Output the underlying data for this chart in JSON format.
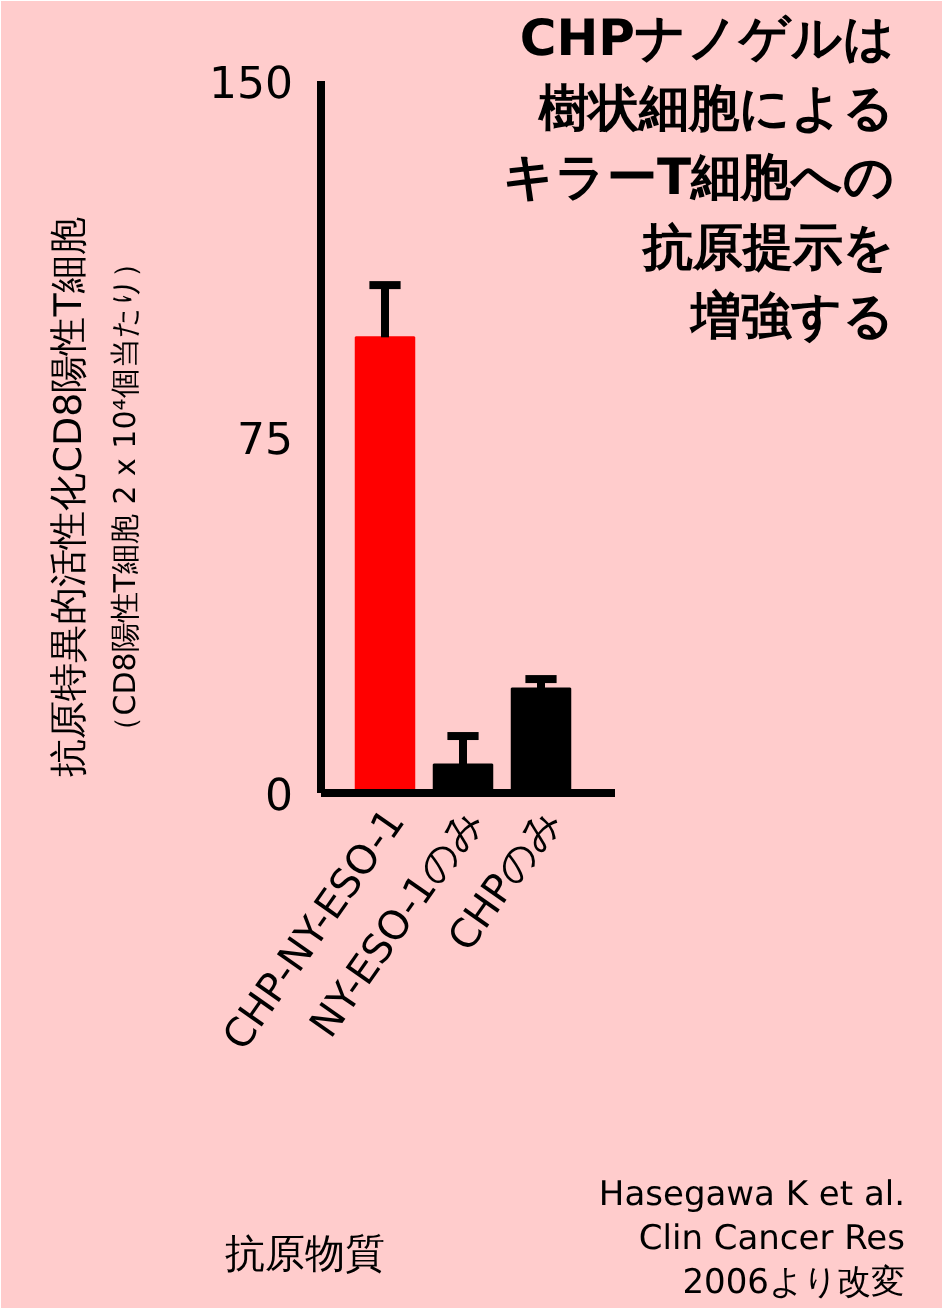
{
  "chart_data": {
    "type": "bar",
    "title": "CHPナノゲルは樹状細胞によるキラーT細胞への抗原提示を増強する",
    "xlabel": "抗原物質",
    "ylabel": "抗原特異的活性化CD8陽性T細胞",
    "categories": [
      "CHP-NY-ESO-1",
      "NY-ESO-1のみ",
      "CHPのみ"
    ],
    "values": [
      96,
      6,
      22
    ],
    "colors": [
      "#ff0000",
      "#000000",
      "#000000"
    ],
    "errors": [
      [
        96,
        107
      ],
      [
        6,
        12
      ],
      [
        22,
        24
      ]
    ],
    "ylim": [
      0,
      150
    ],
    "yticks": [
      0,
      75,
      150
    ],
    "grid": false,
    "annotations": [
      "（CD8陽性T細胞 2 x 10⁴個当たり）",
      "Hasegawa K et al.\nClin Cancer Res\n2006より改変"
    ]
  }
}
